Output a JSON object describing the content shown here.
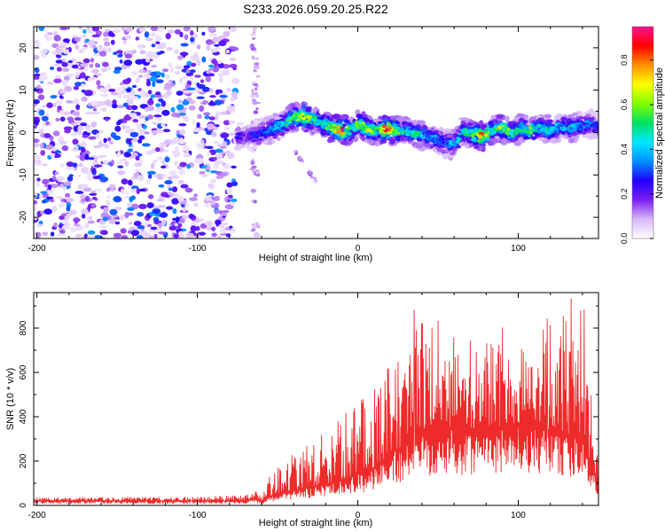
{
  "figure_title": "S233.2026.059.20.25.R22",
  "chart_data": [
    {
      "type": "heatmap",
      "title": "S233.2026.059.20.25.R22",
      "xlabel": "Height of straight line (km)",
      "ylabel": "Frequency (Hz)",
      "xlim": [
        -202,
        150
      ],
      "ylim": [
        -25,
        25
      ],
      "xticks": [
        -200,
        -100,
        0,
        100
      ],
      "xtick_labels": [
        "-200",
        "-100",
        "0",
        "100"
      ],
      "yticks": [
        -20,
        -10,
        0,
        10,
        20
      ],
      "ytick_labels": [
        "-20",
        "-10",
        "0",
        "10",
        "20"
      ],
      "colorbar": {
        "label": "Normalized spectral amplitude",
        "range": [
          0,
          0.95
        ],
        "ticks": [
          0.0,
          0.2,
          0.4,
          0.6,
          0.8
        ],
        "tick_labels": [
          "0.0",
          "0.2",
          "0.4",
          "0.6",
          "0.8"
        ],
        "colormap_stops": [
          "#ffffff",
          "#d8b8f8",
          "#7a1ef0",
          "#2200ff",
          "#0090ff",
          "#00e8ff",
          "#00e060",
          "#80ff00",
          "#ffff00",
          "#ff9000",
          "#ff0000",
          "#ff1090"
        ]
      },
      "noise_region_x": [
        -202,
        -76
      ],
      "gap_region_x": [
        -76,
        -61
      ],
      "signal_ridge": {
        "x": [
          -76,
          -70,
          -64,
          -58,
          -52,
          -46,
          -40,
          -34,
          -28,
          -22,
          -16,
          -10,
          -4,
          0,
          6,
          12,
          18,
          24,
          30,
          36,
          42,
          48,
          54,
          60,
          66,
          72,
          78,
          84,
          90,
          96,
          102,
          108,
          114,
          120,
          126,
          132,
          138,
          144,
          150
        ],
        "freq": [
          -1,
          -1,
          -0.5,
          0,
          1,
          2,
          3.5,
          4,
          3,
          2,
          1,
          0.5,
          0.5,
          2,
          1,
          0.5,
          0.8,
          0.5,
          0.3,
          -0.2,
          -0.8,
          -1.5,
          -2.5,
          -3,
          0.5,
          -0.5,
          -1,
          0.5,
          1,
          0,
          1,
          0.5,
          1,
          0.5,
          1.5,
          1,
          1.5,
          2,
          1.5
        ],
        "amplitude": [
          0.3,
          0.2,
          0.3,
          0.35,
          0.45,
          0.5,
          0.6,
          0.75,
          0.55,
          0.5,
          0.7,
          0.85,
          0.55,
          0.6,
          0.7,
          0.55,
          0.9,
          0.6,
          0.5,
          0.55,
          0.45,
          0.4,
          0.35,
          0.45,
          0.5,
          0.6,
          0.9,
          0.5,
          0.7,
          0.55,
          0.5,
          0.6,
          0.45,
          0.5,
          0.4,
          0.5,
          0.4,
          0.35,
          0.35
        ]
      }
    },
    {
      "type": "line",
      "xlabel": "Height of straight line (km)",
      "ylabel": "SNR (10 * v/v)",
      "xlim": [
        -202,
        150
      ],
      "ylim": [
        0,
        960
      ],
      "xticks": [
        -200,
        -100,
        0,
        100
      ],
      "xtick_labels": [
        "-200",
        "-100",
        "0",
        "100"
      ],
      "yticks": [
        0,
        200,
        400,
        600,
        800
      ],
      "ytick_labels": [
        "0",
        "200",
        "400",
        "600",
        "800"
      ],
      "color": "#ee2b2b",
      "envelope": {
        "x": [
          -202,
          -100,
          -70,
          -64,
          -60,
          -55,
          -45,
          -30,
          -15,
          0,
          10,
          20,
          30,
          35,
          40,
          50,
          60,
          80,
          100,
          115,
          125,
          135,
          140,
          145,
          150
        ],
        "baseline": [
          20,
          20,
          20,
          30,
          15,
          40,
          60,
          80,
          100,
          140,
          170,
          230,
          280,
          320,
          330,
          350,
          340,
          350,
          360,
          340,
          320,
          300,
          310,
          180,
          120
        ],
        "spread": [
          15,
          20,
          25,
          40,
          20,
          90,
          150,
          200,
          260,
          340,
          360,
          420,
          460,
          520,
          520,
          470,
          420,
          380,
          400,
          460,
          500,
          580,
          620,
          400,
          250
        ]
      },
      "peaks": [
        {
          "x": 35,
          "y": 880
        },
        {
          "x": 50,
          "y": 830
        },
        {
          "x": 118,
          "y": 840
        },
        {
          "x": 128,
          "y": 850
        },
        {
          "x": 133,
          "y": 930
        },
        {
          "x": 141,
          "y": 880
        },
        {
          "x": 120,
          "y": 810
        },
        {
          "x": 90,
          "y": 800
        }
      ]
    }
  ]
}
